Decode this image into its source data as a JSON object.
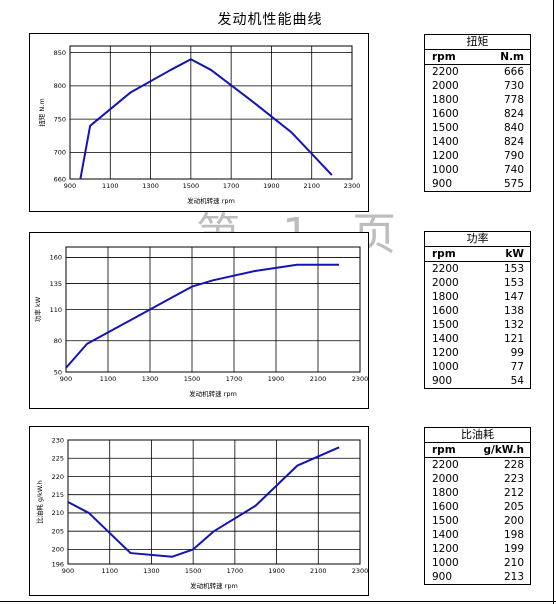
{
  "page": {
    "title": "发动机性能曲线",
    "watermark": "第 1 页"
  },
  "chart_data": [
    {
      "id": "torque",
      "type": "line",
      "xlabel": "发动机转速 rpm",
      "ylabel": "扭矩 N.m",
      "xlim": [
        900,
        2300
      ],
      "ylim": [
        660,
        860
      ],
      "xticks": [
        900,
        1100,
        1300,
        1500,
        1700,
        1900,
        2100,
        2300
      ],
      "yticks": [
        660,
        700,
        750,
        800,
        850
      ],
      "yticks_draw": [
        660,
        700,
        750,
        800,
        850
      ],
      "grid": true,
      "color": "#1414b4",
      "x": [
        900,
        1000,
        1200,
        1400,
        1500,
        1600,
        1800,
        2000,
        2200
      ],
      "y": [
        575,
        740,
        790,
        824,
        840,
        824,
        778,
        730,
        666
      ]
    },
    {
      "id": "power",
      "type": "line",
      "xlabel": "发动机转速 rpm",
      "ylabel": "功率 kW",
      "xlim": [
        900,
        2300
      ],
      "ylim": [
        50,
        170
      ],
      "xticks": [
        900,
        1100,
        1300,
        1500,
        1700,
        1900,
        2100,
        2300
      ],
      "yticks": [
        50,
        80,
        110,
        135,
        160
      ],
      "grid": true,
      "color": "#1414b4",
      "x": [
        900,
        1000,
        1200,
        1400,
        1500,
        1600,
        1800,
        2000,
        2200
      ],
      "y": [
        54,
        77,
        99,
        121,
        132,
        138,
        147,
        153,
        153
      ]
    },
    {
      "id": "bsfc",
      "type": "line",
      "xlabel": "发动机转速 rpm",
      "ylabel": "比油耗 g/kW.h",
      "xlim": [
        900,
        2300
      ],
      "ylim": [
        196,
        230
      ],
      "xticks": [
        900,
        1100,
        1300,
        1500,
        1700,
        1900,
        2100,
        2300
      ],
      "yticks": [
        196,
        200,
        205,
        210,
        215,
        220,
        225,
        230
      ],
      "grid": true,
      "color": "#1414b4",
      "x": [
        900,
        1000,
        1200,
        1400,
        1500,
        1600,
        1800,
        2000,
        2200
      ],
      "y": [
        213,
        210,
        199,
        198,
        200,
        205,
        212,
        223,
        228
      ]
    }
  ],
  "tables": [
    {
      "id": "torque-table",
      "title": "扭矩",
      "col1": "rpm",
      "col2": "N.m",
      "rows": [
        [
          "2200",
          "666"
        ],
        [
          "2000",
          "730"
        ],
        [
          "1800",
          "778"
        ],
        [
          "1600",
          "824"
        ],
        [
          "1500",
          "840"
        ],
        [
          "1400",
          "824"
        ],
        [
          "1200",
          "790"
        ],
        [
          "1000",
          "740"
        ],
        [
          "900",
          "575"
        ]
      ]
    },
    {
      "id": "power-table",
      "title": "功率",
      "col1": "rpm",
      "col2": "kW",
      "rows": [
        [
          "2200",
          "153"
        ],
        [
          "2000",
          "153"
        ],
        [
          "1800",
          "147"
        ],
        [
          "1600",
          "138"
        ],
        [
          "1500",
          "132"
        ],
        [
          "1400",
          "121"
        ],
        [
          "1200",
          "99"
        ],
        [
          "1000",
          "77"
        ],
        [
          "900",
          "54"
        ]
      ]
    },
    {
      "id": "bsfc-table",
      "title": "比油耗",
      "col1": "rpm",
      "col2": "g/kW.h",
      "rows": [
        [
          "2200",
          "228"
        ],
        [
          "2000",
          "223"
        ],
        [
          "1800",
          "212"
        ],
        [
          "1600",
          "205"
        ],
        [
          "1500",
          "200"
        ],
        [
          "1400",
          "198"
        ],
        [
          "1200",
          "199"
        ],
        [
          "1000",
          "210"
        ],
        [
          "900",
          "213"
        ]
      ]
    }
  ]
}
